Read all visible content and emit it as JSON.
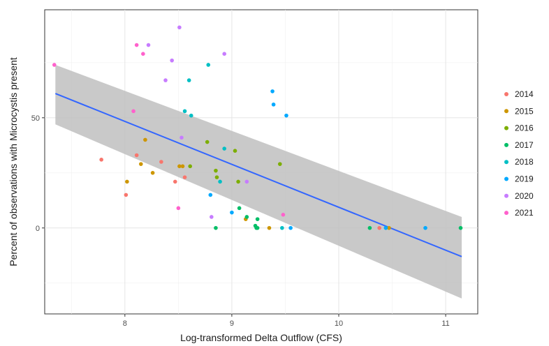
{
  "chart_data": {
    "type": "scatter",
    "title": "",
    "xlabel": "Log-transformed Delta Outflow (CFS)",
    "ylabel": "Percent of observations with Microcystis present",
    "xlim": [
      7.25,
      11.3
    ],
    "ylim": [
      -39,
      99
    ],
    "x_ticks": [
      8,
      9,
      10,
      11
    ],
    "y_ticks": [
      0,
      50
    ],
    "grid": true,
    "legend_position": "right",
    "trend_line": {
      "type": "linear regression with confidence band",
      "color": "#3366FF",
      "band_color": "#bfbfbf",
      "x": [
        7.35,
        11.15
      ],
      "y": [
        61,
        -13
      ],
      "upper": [
        74,
        5
      ],
      "lower": [
        47,
        -32
      ]
    },
    "series": [
      {
        "name": "2014",
        "color": "#F8766D",
        "points": [
          [
            7.78,
            31
          ],
          [
            8.01,
            15
          ],
          [
            8.11,
            33
          ],
          [
            8.34,
            30
          ],
          [
            8.47,
            21
          ],
          [
            8.56,
            23
          ],
          [
            10.38,
            0
          ]
        ]
      },
      {
        "name": "2015",
        "color": "#CD9600",
        "points": [
          [
            8.02,
            21
          ],
          [
            8.15,
            29
          ],
          [
            8.19,
            40
          ],
          [
            8.26,
            25
          ],
          [
            8.51,
            28
          ],
          [
            8.54,
            28
          ],
          [
            9.13,
            4
          ],
          [
            9.35,
            0
          ],
          [
            10.47,
            0
          ]
        ]
      },
      {
        "name": "2016",
        "color": "#7CAE00",
        "points": [
          [
            8.61,
            28
          ],
          [
            8.77,
            39
          ],
          [
            8.85,
            26
          ],
          [
            8.86,
            23
          ],
          [
            9.03,
            35
          ],
          [
            9.06,
            21
          ],
          [
            9.45,
            29
          ]
        ]
      },
      {
        "name": "2017",
        "color": "#00BE67",
        "points": [
          [
            8.85,
            0
          ],
          [
            9.07,
            9
          ],
          [
            9.14,
            5
          ],
          [
            9.22,
            1
          ],
          [
            9.23,
            0
          ],
          [
            9.24,
            0
          ],
          [
            9.24,
            4
          ],
          [
            10.29,
            0
          ],
          [
            11.14,
            0
          ]
        ]
      },
      {
        "name": "2018",
        "color": "#00BFC4",
        "points": [
          [
            8.56,
            53
          ],
          [
            8.6,
            67
          ],
          [
            8.62,
            51
          ],
          [
            8.78,
            74
          ],
          [
            8.89,
            21
          ],
          [
            8.93,
            36
          ],
          [
            9.47,
            0
          ]
        ]
      },
      {
        "name": "2019",
        "color": "#00A9FF",
        "points": [
          [
            8.8,
            15
          ],
          [
            9.0,
            7
          ],
          [
            9.38,
            62
          ],
          [
            9.39,
            56
          ],
          [
            9.51,
            51
          ],
          [
            9.55,
            0
          ],
          [
            10.44,
            0
          ],
          [
            10.81,
            0
          ]
        ]
      },
      {
        "name": "2020",
        "color": "#C77CFF",
        "points": [
          [
            8.22,
            83
          ],
          [
            8.38,
            67
          ],
          [
            8.44,
            76
          ],
          [
            8.51,
            91
          ],
          [
            8.53,
            41
          ],
          [
            8.81,
            5
          ],
          [
            8.93,
            79
          ],
          [
            9.14,
            21
          ]
        ]
      },
      {
        "name": "2021",
        "color": "#FF61CC",
        "points": [
          [
            7.34,
            74
          ],
          [
            8.08,
            53
          ],
          [
            8.11,
            83
          ],
          [
            8.17,
            79
          ],
          [
            8.5,
            9
          ],
          [
            9.48,
            6
          ]
        ]
      }
    ]
  }
}
